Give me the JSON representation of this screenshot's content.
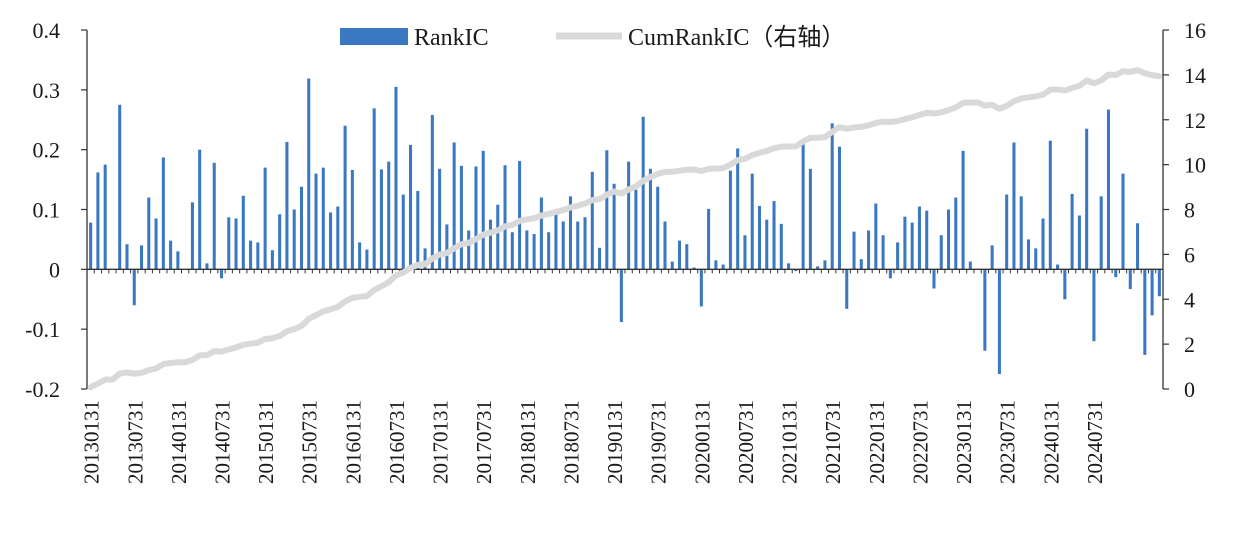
{
  "chart_data": {
    "type": "bar",
    "title": "",
    "xlabel": "",
    "ylabel": "",
    "ylim": [
      -0.2,
      0.4
    ],
    "y2lim": [
      0,
      16
    ],
    "yticks": [
      "0.4",
      "0.3",
      "0.2",
      "0.1",
      "0",
      "-0.1",
      "-0.2"
    ],
    "y2ticks": [
      "16",
      "14",
      "12",
      "10",
      "8",
      "6",
      "4",
      "2",
      "0"
    ],
    "xtick_labels": [
      "20130131",
      "20130731",
      "20140131",
      "20140731",
      "20150131",
      "20150731",
      "20160131",
      "20160731",
      "20170131",
      "20170731",
      "20180131",
      "20180731",
      "20190131",
      "20190731",
      "20200131",
      "20200731",
      "20210131",
      "20210731",
      "20220131",
      "20220731",
      "20230131",
      "20230731",
      "20240131",
      "20240731"
    ],
    "legend": {
      "position": "top-center"
    },
    "colors": {
      "bar": "#3a78c2",
      "line": "#d9d9d9",
      "axis": "#333333"
    },
    "series": [
      {
        "name": "RankIC",
        "kind": "bar",
        "axis": "left",
        "values": [
          0.078,
          0.162,
          0.175,
          0,
          0.275,
          0.042,
          -0.06,
          0.04,
          0.12,
          0.085,
          0.187,
          0.048,
          0.03,
          0,
          0.112,
          0.2,
          0.01,
          0.178,
          -0.015,
          0.087,
          0.085,
          0.123,
          0.048,
          0.045,
          0.17,
          0.032,
          0.092,
          0.213,
          0.1,
          0.138,
          0.319,
          0.16,
          0.17,
          0.095,
          0.105,
          0.24,
          0.166,
          0.045,
          0.033,
          0.269,
          0.167,
          0.18,
          0.305,
          0.125,
          0.208,
          0.131,
          0.035,
          0.258,
          0.168,
          0.075,
          0.212,
          0.173,
          0.065,
          0.172,
          0.198,
          0.083,
          0.108,
          0.174,
          0.062,
          0.181,
          0.065,
          0.059,
          0.12,
          0.062,
          0.093,
          0.08,
          0.122,
          0.08,
          0.087,
          0.163,
          0.036,
          0.199,
          0.143,
          -0.088,
          0.18,
          0.133,
          0.255,
          0.168,
          0.138,
          0.08,
          0.013,
          0.048,
          0.042,
          0.003,
          -0.062,
          0.101,
          0.015,
          0.008,
          0.165,
          0.202,
          0.057,
          0.16,
          0.106,
          0.083,
          0.114,
          0.076,
          0.01,
          -0.003,
          0.218,
          0.168,
          0.005,
          0.015,
          0.244,
          0.205,
          -0.066,
          0.063,
          0.017,
          0.065,
          0.11,
          0.057,
          -0.015,
          0.045,
          0.088,
          0.078,
          0.105,
          0.098,
          -0.032,
          0.057,
          0.1,
          0.12,
          0.198,
          0.013,
          0,
          -0.136,
          0.04,
          -0.175,
          0.125,
          0.212,
          0.122,
          0.05,
          0.035,
          0.085,
          0.215,
          0.008,
          -0.05,
          0.126,
          0.09,
          0.235,
          -0.12,
          0.122,
          0.267,
          -0.013,
          0.16,
          -0.033,
          0.077,
          -0.143,
          -0.077,
          -0.045
        ]
      },
      {
        "name": "CumRankIC（右轴）",
        "kind": "line",
        "axis": "right",
        "values": [
          0.08,
          0.24,
          0.42,
          0.42,
          0.69,
          0.74,
          0.68,
          0.72,
          0.84,
          0.92,
          1.11,
          1.16,
          1.19,
          1.19,
          1.3,
          1.5,
          1.51,
          1.69,
          1.67,
          1.76,
          1.85,
          1.97,
          2.02,
          2.06,
          2.23,
          2.26,
          2.36,
          2.57,
          2.67,
          2.81,
          3.13,
          3.29,
          3.46,
          3.55,
          3.66,
          3.9,
          4.06,
          4.11,
          4.14,
          4.41,
          4.58,
          4.76,
          5.06,
          5.19,
          5.4,
          5.53,
          5.56,
          5.82,
          5.99,
          6.06,
          6.27,
          6.45,
          6.51,
          6.68,
          6.88,
          6.97,
          7.07,
          7.25,
          7.31,
          7.49,
          7.56,
          7.61,
          7.73,
          7.8,
          7.89,
          7.97,
          8.09,
          8.17,
          8.26,
          8.42,
          8.46,
          8.66,
          8.8,
          8.71,
          8.89,
          9.03,
          9.28,
          9.45,
          9.59,
          9.67,
          9.68,
          9.73,
          9.77,
          9.78,
          9.71,
          9.81,
          9.83,
          9.84,
          10.0,
          10.2,
          10.26,
          10.42,
          10.53,
          10.61,
          10.73,
          10.8,
          10.81,
          10.81,
          11.03,
          11.2,
          11.2,
          11.22,
          11.46,
          11.67,
          11.6,
          11.66,
          11.68,
          11.75,
          11.86,
          11.91,
          11.9,
          11.94,
          12.03,
          12.11,
          12.21,
          12.31,
          12.28,
          12.33,
          12.43,
          12.55,
          12.75,
          12.77,
          12.77,
          12.63,
          12.67,
          12.49,
          12.62,
          12.83,
          12.95,
          13.0,
          13.04,
          13.12,
          13.34,
          13.35,
          13.3,
          13.42,
          13.51,
          13.75,
          13.63,
          13.75,
          14.01,
          14.0,
          14.16,
          14.13,
          14.21,
          14.07,
          13.99,
          13.94
        ]
      }
    ]
  }
}
